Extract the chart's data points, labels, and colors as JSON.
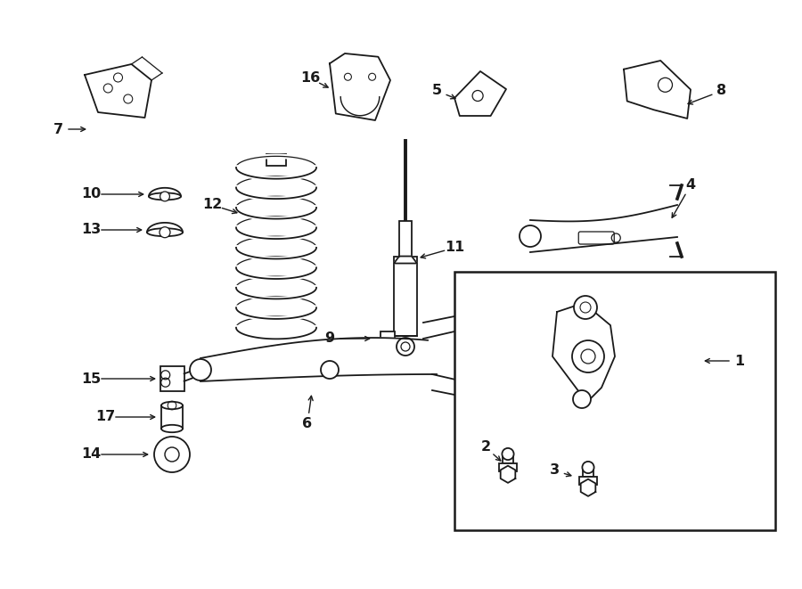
{
  "bg_color": "#ffffff",
  "line_color": "#1a1a1a",
  "lw": 1.3,
  "fig_w": 9.0,
  "fig_h": 6.61,
  "dpi": 100
}
